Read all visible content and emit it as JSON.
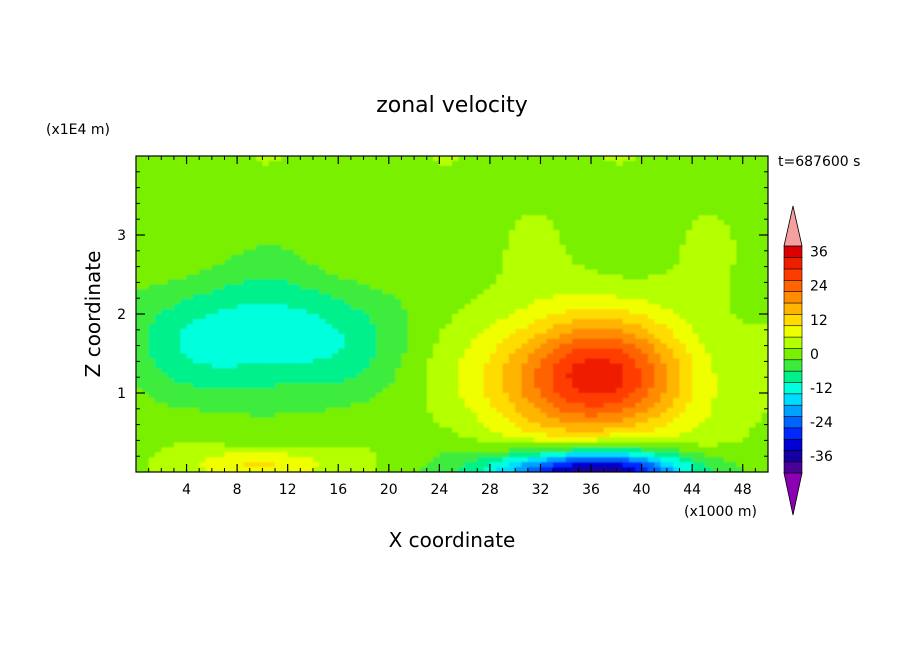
{
  "chart_data": {
    "type": "heatmap",
    "title": "zonal velocity",
    "xlabel": "X coordinate",
    "ylabel": "Z coordinate",
    "x_unit": "(x1000 m)",
    "y_unit": "(x1E4 m)",
    "time_label": "t=687600 s",
    "xlim": [
      0,
      50
    ],
    "ylim": [
      0,
      4
    ],
    "x_ticks": [
      4,
      8,
      12,
      16,
      20,
      24,
      28,
      32,
      36,
      40,
      44,
      48
    ],
    "y_ticks": [
      1,
      2,
      3
    ],
    "x_tick_labels": [
      "4",
      "8",
      "12",
      "16",
      "20",
      "24",
      "28",
      "32",
      "36",
      "40",
      "44",
      "48"
    ],
    "y_tick_labels": [
      "1",
      "2",
      "3"
    ],
    "colorbar": {
      "levels": [
        -40,
        -36,
        -32,
        -28,
        -24,
        -20,
        -16,
        -12,
        -8,
        -4,
        0,
        4,
        8,
        12,
        16,
        20,
        24,
        28,
        32,
        36,
        40
      ],
      "tick_values": [
        -36,
        -24,
        -12,
        0,
        12,
        24,
        36
      ],
      "tick_labels": [
        "-36",
        "-24",
        "-12",
        "0",
        "12",
        "24",
        "36"
      ],
      "colors": [
        "#4b0096",
        "#1400a0",
        "#0000d2",
        "#0028ff",
        "#0064ff",
        "#00a0ff",
        "#00dcff",
        "#00ffdc",
        "#00f08c",
        "#3cec3c",
        "#78f000",
        "#b4ff00",
        "#f0ff00",
        "#ffdc00",
        "#ffb400",
        "#ff8c00",
        "#ff6400",
        "#ff3c00",
        "#f01e00",
        "#dc0000"
      ],
      "under_color": "#8c00b4",
      "over_color": "#f5a0a0"
    },
    "features": [
      {
        "kind": "jet-max",
        "x": 36,
        "z": 1.2,
        "value": 34
      },
      {
        "kind": "surface-min",
        "x": 36,
        "z": 0.05,
        "value": -38
      },
      {
        "kind": "upper-min",
        "x": 10,
        "z": 1.7,
        "value": -12
      },
      {
        "kind": "surface-max",
        "x": 10,
        "z": 0.1,
        "value": 14
      }
    ]
  }
}
